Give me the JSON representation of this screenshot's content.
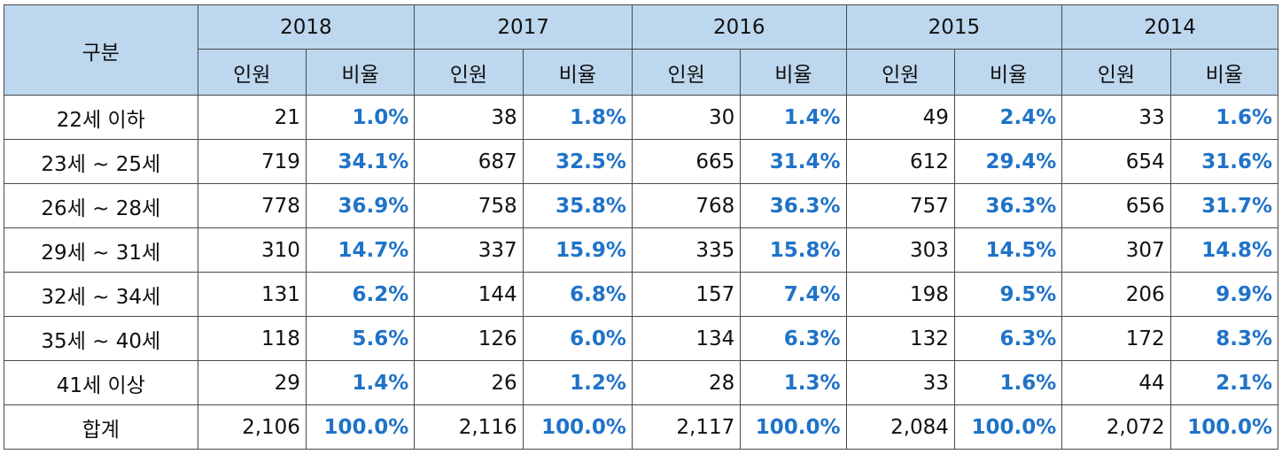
{
  "colors": {
    "header_bg": "#bdd7ee",
    "ratio_text": "#1f73c8",
    "border": "#4a4a4a"
  },
  "header": {
    "category_label": "구분",
    "years": [
      "2018",
      "2017",
      "2016",
      "2015",
      "2014"
    ],
    "count_label": "인원",
    "ratio_label": "비율"
  },
  "rows": [
    {
      "label": "22세 이하",
      "cells": [
        {
          "count": "21",
          "ratio": "1.0%"
        },
        {
          "count": "38",
          "ratio": "1.8%"
        },
        {
          "count": "30",
          "ratio": "1.4%"
        },
        {
          "count": "49",
          "ratio": "2.4%"
        },
        {
          "count": "33",
          "ratio": "1.6%"
        }
      ]
    },
    {
      "label": "23세 ~ 25세",
      "cells": [
        {
          "count": "719",
          "ratio": "34.1%"
        },
        {
          "count": "687",
          "ratio": "32.5%"
        },
        {
          "count": "665",
          "ratio": "31.4%"
        },
        {
          "count": "612",
          "ratio": "29.4%"
        },
        {
          "count": "654",
          "ratio": "31.6%"
        }
      ]
    },
    {
      "label": "26세 ~ 28세",
      "cells": [
        {
          "count": "778",
          "ratio": "36.9%"
        },
        {
          "count": "758",
          "ratio": "35.8%"
        },
        {
          "count": "768",
          "ratio": "36.3%"
        },
        {
          "count": "757",
          "ratio": "36.3%"
        },
        {
          "count": "656",
          "ratio": "31.7%"
        }
      ]
    },
    {
      "label": "29세 ~ 31세",
      "cells": [
        {
          "count": "310",
          "ratio": "14.7%"
        },
        {
          "count": "337",
          "ratio": "15.9%"
        },
        {
          "count": "335",
          "ratio": "15.8%"
        },
        {
          "count": "303",
          "ratio": "14.5%"
        },
        {
          "count": "307",
          "ratio": "14.8%"
        }
      ]
    },
    {
      "label": "32세 ~ 34세",
      "cells": [
        {
          "count": "131",
          "ratio": "6.2%"
        },
        {
          "count": "144",
          "ratio": "6.8%"
        },
        {
          "count": "157",
          "ratio": "7.4%"
        },
        {
          "count": "198",
          "ratio": "9.5%"
        },
        {
          "count": "206",
          "ratio": "9.9%"
        }
      ]
    },
    {
      "label": "35세 ~ 40세",
      "cells": [
        {
          "count": "118",
          "ratio": "5.6%"
        },
        {
          "count": "126",
          "ratio": "6.0%"
        },
        {
          "count": "134",
          "ratio": "6.3%"
        },
        {
          "count": "132",
          "ratio": "6.3%"
        },
        {
          "count": "172",
          "ratio": "8.3%"
        }
      ]
    },
    {
      "label": "41세 이상",
      "cells": [
        {
          "count": "29",
          "ratio": "1.4%"
        },
        {
          "count": "26",
          "ratio": "1.2%"
        },
        {
          "count": "28",
          "ratio": "1.3%"
        },
        {
          "count": "33",
          "ratio": "1.6%"
        },
        {
          "count": "44",
          "ratio": "2.1%"
        }
      ]
    },
    {
      "label": "합계",
      "cells": [
        {
          "count": "2,106",
          "ratio": "100.0%"
        },
        {
          "count": "2,116",
          "ratio": "100.0%"
        },
        {
          "count": "2,117",
          "ratio": "100.0%"
        },
        {
          "count": "2,084",
          "ratio": "100.0%"
        },
        {
          "count": "2,072",
          "ratio": "100.0%"
        }
      ]
    }
  ]
}
